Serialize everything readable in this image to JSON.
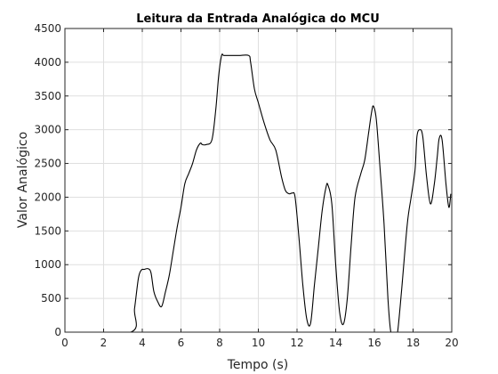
{
  "chart_data": {
    "type": "line",
    "title": "Leitura da Entrada Analógica do MCU",
    "xlabel": "Tempo (s)",
    "ylabel": "Valor Analógico",
    "xlim": [
      0,
      20
    ],
    "ylim": [
      0,
      4500
    ],
    "xticks": [
      0,
      2,
      4,
      6,
      8,
      10,
      12,
      14,
      16,
      18,
      20
    ],
    "yticks": [
      0,
      500,
      1000,
      1500,
      2000,
      2500,
      3000,
      3500,
      4000,
      4500
    ],
    "grid": true,
    "colors": {
      "series": "#000000",
      "grid": "#dfdfdf",
      "axis": "#262626"
    },
    "series": [
      {
        "x": [
          0.2,
          3.4,
          3.6,
          3.8,
          3.95,
          4.1,
          4.3,
          4.45,
          4.6,
          4.8,
          5.0,
          5.2,
          5.4,
          5.6,
          5.8,
          6.0,
          6.2,
          6.4,
          6.6,
          6.8,
          7.0,
          7.1,
          7.3,
          7.6,
          7.8,
          7.95,
          8.1,
          8.2,
          8.3,
          8.6,
          9.0,
          9.5,
          9.6,
          9.8,
          10.0,
          10.3,
          10.6,
          10.9,
          11.2,
          11.4,
          11.6,
          11.75,
          11.9,
          12.1,
          12.3,
          12.5,
          12.7,
          12.9,
          13.1,
          13.3,
          13.5,
          13.6,
          13.8,
          14.0,
          14.2,
          14.4,
          14.6,
          14.8,
          15.0,
          15.3,
          15.5,
          15.7,
          15.85,
          15.95,
          16.1,
          16.3,
          16.5,
          16.7,
          16.85,
          17.0,
          17.1,
          17.2,
          17.4,
          17.7,
          17.9,
          18.1,
          18.2,
          18.35,
          18.5,
          18.7,
          18.9,
          19.1,
          19.25,
          19.35,
          19.5,
          19.7,
          19.85,
          19.95
        ],
        "y": [
          0,
          0,
          350,
          800,
          920,
          930,
          940,
          880,
          600,
          450,
          380,
          600,
          850,
          1200,
          1550,
          1850,
          2200,
          2350,
          2500,
          2700,
          2800,
          2780,
          2780,
          2850,
          3300,
          3800,
          4100,
          4100,
          4100,
          4100,
          4100,
          4100,
          4000,
          3600,
          3400,
          3100,
          2850,
          2700,
          2300,
          2100,
          2050,
          2060,
          2000,
          1400,
          700,
          200,
          130,
          700,
          1250,
          1800,
          2150,
          2180,
          1900,
          1000,
          300,
          120,
          500,
          1300,
          2000,
          2350,
          2550,
          2950,
          3250,
          3350,
          3150,
          2400,
          1600,
          500,
          0,
          0,
          0,
          0,
          600,
          1600,
          2000,
          2400,
          2900,
          3000,
          2900,
          2300,
          1900,
          2200,
          2600,
          2870,
          2850,
          2200,
          1850,
          2050
        ]
      }
    ]
  }
}
